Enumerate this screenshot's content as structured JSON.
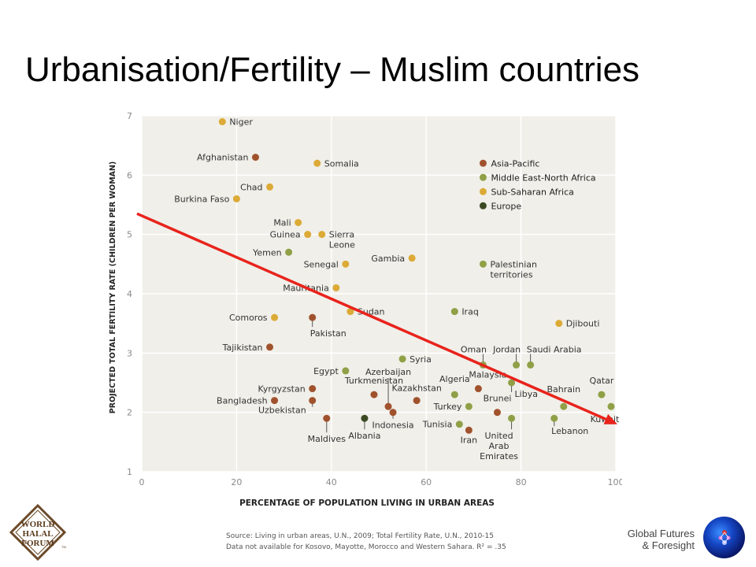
{
  "slide": {
    "title": "Urbanisation/Fertility – Muslim countries",
    "brand_line1": "Global Futures",
    "brand_line2": "& Foresight",
    "logo_lines": [
      "WORLD",
      "HALAL",
      "FORUM"
    ],
    "logo_mark": "TM"
  },
  "source": {
    "line1": "Source: Living in urban areas, U.N., 2009; Total Fertility Rate, U.N., 2010-15",
    "line2": "Data not available for Kosovo, Mayotte, Morocco and Western Sahara. R² = .35"
  },
  "chart_data": {
    "type": "scatter",
    "xlabel": "PERCENTAGE OF POPULATION LIVING IN URBAN AREAS",
    "ylabel": "PROJECTED TOTAL FERTILITY RATE (CHILDREN PER WOMAN)",
    "xlim": [
      0,
      100
    ],
    "ylim": [
      1,
      7
    ],
    "xticks": [
      0,
      20,
      40,
      60,
      80,
      100
    ],
    "yticks": [
      1,
      2,
      3,
      4,
      5,
      6,
      7
    ],
    "grid": true,
    "legend_placement": "top-right",
    "series": [
      {
        "name": "Asia-Pacific",
        "color": "#a0522d"
      },
      {
        "name": "Middle East-North Africa",
        "color": "#8fa046"
      },
      {
        "name": "Sub-Saharan Africa",
        "color": "#dcaa36"
      },
      {
        "name": "Europe",
        "color": "#3c4a24"
      }
    ],
    "points": [
      {
        "label": "Niger",
        "x": 17,
        "y": 6.9,
        "series": "Sub-Saharan Africa"
      },
      {
        "label": "Afghanistan",
        "x": 24,
        "y": 6.3,
        "series": "Asia-Pacific"
      },
      {
        "label": "Somalia",
        "x": 37,
        "y": 6.2,
        "series": "Sub-Saharan Africa"
      },
      {
        "label": "Chad",
        "x": 27,
        "y": 5.8,
        "series": "Sub-Saharan Africa"
      },
      {
        "label": "Burkina Faso",
        "x": 20,
        "y": 5.6,
        "series": "Sub-Saharan Africa"
      },
      {
        "label": "Mali",
        "x": 33,
        "y": 5.2,
        "series": "Sub-Saharan Africa"
      },
      {
        "label": "Guinea",
        "x": 35,
        "y": 5.0,
        "series": "Sub-Saharan Africa"
      },
      {
        "label": "Sierra Leone",
        "x": 38,
        "y": 5.0,
        "series": "Sub-Saharan Africa"
      },
      {
        "label": "Yemen",
        "x": 31,
        "y": 4.7,
        "series": "Middle East-North Africa"
      },
      {
        "label": "Gambia",
        "x": 57,
        "y": 4.6,
        "series": "Sub-Saharan Africa"
      },
      {
        "label": "Senegal",
        "x": 43,
        "y": 4.5,
        "series": "Sub-Saharan Africa"
      },
      {
        "label": "Palestinian territories",
        "x": 72,
        "y": 4.5,
        "series": "Middle East-North Africa"
      },
      {
        "label": "Mauritania",
        "x": 41,
        "y": 4.1,
        "series": "Sub-Saharan Africa"
      },
      {
        "label": "Sudan",
        "x": 44,
        "y": 3.7,
        "series": "Sub-Saharan Africa"
      },
      {
        "label": "Iraq",
        "x": 66,
        "y": 3.7,
        "series": "Middle East-North Africa"
      },
      {
        "label": "Comoros",
        "x": 28,
        "y": 3.6,
        "series": "Sub-Saharan Africa"
      },
      {
        "label": "Pakistan",
        "x": 36,
        "y": 3.6,
        "series": "Asia-Pacific"
      },
      {
        "label": "Djibouti",
        "x": 88,
        "y": 3.5,
        "series": "Sub-Saharan Africa"
      },
      {
        "label": "Tajikistan",
        "x": 27,
        "y": 3.1,
        "series": "Asia-Pacific"
      },
      {
        "label": "Syria",
        "x": 55,
        "y": 2.9,
        "series": "Middle East-North Africa"
      },
      {
        "label": "Oman",
        "x": 72,
        "y": 2.8,
        "series": "Middle East-North Africa"
      },
      {
        "label": "Jordan",
        "x": 79,
        "y": 2.8,
        "series": "Middle East-North Africa"
      },
      {
        "label": "Saudi Arabia",
        "x": 82,
        "y": 2.8,
        "series": "Middle East-North Africa"
      },
      {
        "label": "Egypt",
        "x": 43,
        "y": 2.7,
        "series": "Middle East-North Africa"
      },
      {
        "label": "Libya",
        "x": 78,
        "y": 2.5,
        "series": "Middle East-North Africa"
      },
      {
        "label": "Malaysia",
        "x": 71,
        "y": 2.4,
        "series": "Asia-Pacific"
      },
      {
        "label": "Kyrgyzstan",
        "x": 36,
        "y": 2.4,
        "series": "Asia-Pacific"
      },
      {
        "label": "Algeria",
        "x": 66,
        "y": 2.3,
        "series": "Middle East-North Africa"
      },
      {
        "label": "Turkmenistan",
        "x": 49,
        "y": 2.3,
        "series": "Asia-Pacific"
      },
      {
        "label": "Qatar",
        "x": 97,
        "y": 2.3,
        "series": "Middle East-North Africa"
      },
      {
        "label": "Bangladesh",
        "x": 28,
        "y": 2.2,
        "series": "Asia-Pacific"
      },
      {
        "label": "Kazakhstan",
        "x": 58,
        "y": 2.2,
        "series": "Asia-Pacific"
      },
      {
        "label": "Bahrain",
        "x": 89,
        "y": 2.1,
        "series": "Middle East-North Africa"
      },
      {
        "label": "Kuwait",
        "x": 99,
        "y": 2.1,
        "series": "Middle East-North Africa"
      },
      {
        "label": "Turkey",
        "x": 69,
        "y": 2.1,
        "series": "Middle East-North Africa"
      },
      {
        "label": "Azerbaijan",
        "x": 52,
        "y": 2.1,
        "series": "Asia-Pacific"
      },
      {
        "label": "Brunei",
        "x": 75,
        "y": 2.0,
        "series": "Asia-Pacific"
      },
      {
        "label": "Uzbekistan",
        "x": 36,
        "y": 2.2,
        "series": "Asia-Pacific"
      },
      {
        "label": "Maldives",
        "x": 39,
        "y": 1.9,
        "series": "Asia-Pacific"
      },
      {
        "label": "Albania",
        "x": 47,
        "y": 1.9,
        "series": "Europe"
      },
      {
        "label": "Indonesia",
        "x": 53,
        "y": 2.0,
        "series": "Asia-Pacific"
      },
      {
        "label": "Tunisia",
        "x": 67,
        "y": 1.8,
        "series": "Middle East-North Africa"
      },
      {
        "label": "Iran",
        "x": 69,
        "y": 1.7,
        "series": "Asia-Pacific"
      },
      {
        "label": "United Arab Emirates",
        "x": 78,
        "y": 1.9,
        "series": "Middle East-North Africa"
      },
      {
        "label": "Lebanon",
        "x": 87,
        "y": 1.9,
        "series": "Middle East-North Africa"
      }
    ],
    "annotations": [
      {
        "type": "trend-arrow",
        "color": "#e8231c",
        "from": [
          0,
          5.35
        ],
        "to": [
          100,
          1.8
        ]
      }
    ]
  }
}
